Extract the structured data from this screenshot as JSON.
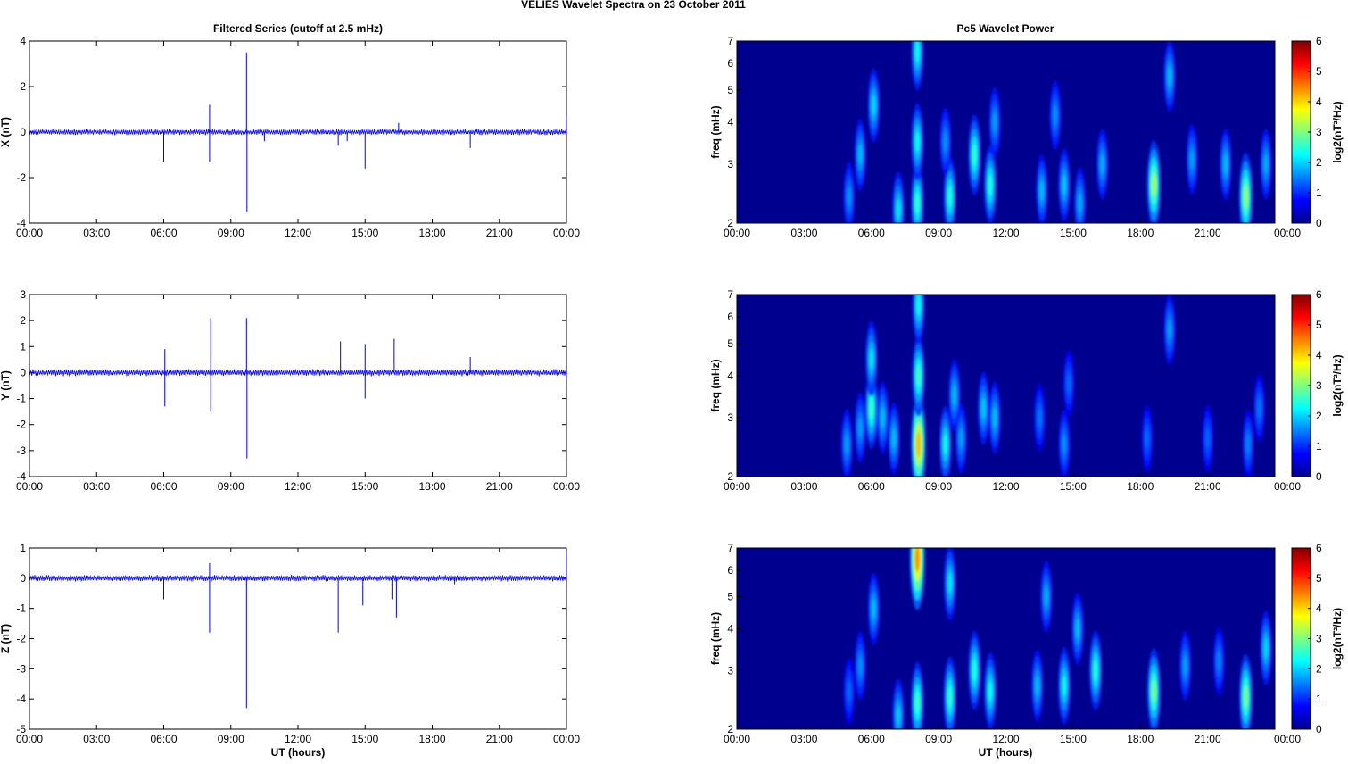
{
  "title": "VELIES Wavelet Spectra on 23 October   2011",
  "left_title": "Filtered Series (cutoff at 2.5 mHz)",
  "right_title": "Pc5 Wavelet Power",
  "x_ticks": [
    "00:00",
    "03:00",
    "06:00",
    "09:00",
    "12:00",
    "15:00",
    "18:00",
    "21:00",
    "00:00"
  ],
  "x_label": "UT (hours)",
  "freq_label": "freq (mHz)",
  "freq_ticks": [
    "2",
    "3",
    "4",
    "5",
    "6",
    "7"
  ],
  "colorbar_ticks": [
    "0",
    "1",
    "2",
    "3",
    "4",
    "5",
    "6"
  ],
  "colorbar_label": "log2(nT²/Hz)",
  "colors": {
    "trace": "#0000ff",
    "spectrum_bg": "#00008f",
    "axis": "#000000"
  },
  "chart_data": [
    {
      "type": "line",
      "title": "Filtered Series (cutoff at 2.5 mHz)",
      "ylabel": "X (nT)",
      "xlim": [
        0,
        24
      ],
      "ylim": [
        -4,
        4
      ],
      "yticks": [
        -4,
        -2,
        0,
        2,
        4
      ],
      "baseline_amplitude": 0.1,
      "spikes": [
        [
          6.0,
          -1.3
        ],
        [
          8.05,
          1.2
        ],
        [
          8.05,
          -1.3
        ],
        [
          9.7,
          3.5
        ],
        [
          9.72,
          -3.5
        ],
        [
          10.5,
          -0.4
        ],
        [
          13.8,
          -0.6
        ],
        [
          14.2,
          -0.4
        ],
        [
          15.0,
          -1.6
        ],
        [
          16.5,
          0.4
        ],
        [
          19.7,
          -0.7
        ],
        [
          24.0,
          0.7
        ]
      ]
    },
    {
      "type": "line",
      "title": "",
      "ylabel": "Y (nT)",
      "xlim": [
        0,
        24
      ],
      "ylim": [
        -4,
        3
      ],
      "yticks": [
        -4,
        -3,
        -2,
        -1,
        0,
        1,
        2,
        3
      ],
      "baseline_amplitude": 0.1,
      "spikes": [
        [
          6.05,
          0.9
        ],
        [
          6.05,
          -1.3
        ],
        [
          8.1,
          2.1
        ],
        [
          8.1,
          -1.5
        ],
        [
          9.7,
          2.1
        ],
        [
          9.72,
          -3.3
        ],
        [
          13.9,
          1.2
        ],
        [
          15.0,
          1.1
        ],
        [
          15.0,
          -1.0
        ],
        [
          16.3,
          1.3
        ],
        [
          19.7,
          0.6
        ],
        [
          24.0,
          -0.3
        ]
      ]
    },
    {
      "type": "line",
      "title": "",
      "ylabel": "Z (nT)",
      "xlim": [
        0,
        24
      ],
      "ylim": [
        -5,
        1
      ],
      "yticks": [
        -5,
        -4,
        -3,
        -2,
        -1,
        0,
        1
      ],
      "baseline_amplitude": 0.08,
      "spikes": [
        [
          6.0,
          -0.7
        ],
        [
          8.05,
          0.5
        ],
        [
          8.05,
          -1.8
        ],
        [
          9.7,
          -4.3
        ],
        [
          13.8,
          -1.8
        ],
        [
          14.9,
          -0.9
        ],
        [
          16.2,
          -0.7
        ],
        [
          16.4,
          -1.3
        ],
        [
          19.0,
          -0.2
        ],
        [
          24.0,
          0.9
        ]
      ]
    },
    {
      "type": "heatmap",
      "title": "Pc5 Wavelet Power",
      "ylabel": "freq (mHz)",
      "xlim": [
        0,
        24
      ],
      "ylim": [
        2,
        7
      ],
      "yscale": "log",
      "zlim": [
        0,
        6
      ],
      "colormap": "jet",
      "blobs": [
        {
          "t": 5.0,
          "f": 2.4,
          "p": 1.2
        },
        {
          "t": 5.5,
          "f": 3.2,
          "p": 1.5
        },
        {
          "t": 6.1,
          "f": 4.5,
          "p": 1.7
        },
        {
          "t": 7.2,
          "f": 2.2,
          "p": 1.8
        },
        {
          "t": 8.05,
          "f": 2.3,
          "p": 2.3
        },
        {
          "t": 8.05,
          "f": 3.5,
          "p": 2.0
        },
        {
          "t": 8.05,
          "f": 6.5,
          "p": 2.0
        },
        {
          "t": 9.5,
          "f": 2.4,
          "p": 2.2
        },
        {
          "t": 9.3,
          "f": 3.5,
          "p": 1.2
        },
        {
          "t": 10.6,
          "f": 3.2,
          "p": 2.3
        },
        {
          "t": 11.3,
          "f": 2.6,
          "p": 2.2
        },
        {
          "t": 11.5,
          "f": 4.0,
          "p": 1.3
        },
        {
          "t": 13.6,
          "f": 2.5,
          "p": 1.5
        },
        {
          "t": 14.6,
          "f": 2.6,
          "p": 1.6
        },
        {
          "t": 14.2,
          "f": 4.2,
          "p": 1.2
        },
        {
          "t": 15.3,
          "f": 2.3,
          "p": 1.4
        },
        {
          "t": 16.3,
          "f": 3.0,
          "p": 1.4
        },
        {
          "t": 18.6,
          "f": 2.6,
          "p": 3.1
        },
        {
          "t": 19.3,
          "f": 5.5,
          "p": 1.5
        },
        {
          "t": 20.3,
          "f": 3.1,
          "p": 1.3
        },
        {
          "t": 21.8,
          "f": 3.0,
          "p": 1.5
        },
        {
          "t": 22.7,
          "f": 2.4,
          "p": 3.0
        },
        {
          "t": 23.6,
          "f": 3.0,
          "p": 1.4
        }
      ]
    },
    {
      "type": "heatmap",
      "title": "",
      "ylabel": "freq (mHz)",
      "xlim": [
        0,
        24
      ],
      "ylim": [
        2,
        7
      ],
      "yscale": "log",
      "zlim": [
        0,
        6
      ],
      "colormap": "jet",
      "blobs": [
        {
          "t": 4.9,
          "f": 2.5,
          "p": 1.3
        },
        {
          "t": 5.5,
          "f": 2.8,
          "p": 1.3
        },
        {
          "t": 6.0,
          "f": 3.2,
          "p": 2.4
        },
        {
          "t": 6.0,
          "f": 4.5,
          "p": 1.8
        },
        {
          "t": 6.5,
          "f": 3.0,
          "p": 1.5
        },
        {
          "t": 7.0,
          "f": 2.6,
          "p": 1.5
        },
        {
          "t": 8.1,
          "f": 2.5,
          "p": 4.2
        },
        {
          "t": 8.1,
          "f": 4.0,
          "p": 2.4
        },
        {
          "t": 8.1,
          "f": 6.5,
          "p": 2.0
        },
        {
          "t": 9.3,
          "f": 2.5,
          "p": 2.0
        },
        {
          "t": 9.7,
          "f": 3.5,
          "p": 1.5
        },
        {
          "t": 10.0,
          "f": 2.6,
          "p": 1.3
        },
        {
          "t": 11.0,
          "f": 3.2,
          "p": 1.6
        },
        {
          "t": 11.5,
          "f": 3.0,
          "p": 1.5
        },
        {
          "t": 13.5,
          "f": 3.0,
          "p": 1.0
        },
        {
          "t": 14.6,
          "f": 2.5,
          "p": 1.2
        },
        {
          "t": 14.8,
          "f": 3.8,
          "p": 0.9
        },
        {
          "t": 18.3,
          "f": 2.6,
          "p": 0.9
        },
        {
          "t": 19.3,
          "f": 5.5,
          "p": 1.3
        },
        {
          "t": 21.0,
          "f": 2.6,
          "p": 0.9
        },
        {
          "t": 22.8,
          "f": 2.5,
          "p": 1.1
        },
        {
          "t": 23.3,
          "f": 3.2,
          "p": 1.0
        }
      ]
    },
    {
      "type": "heatmap",
      "title": "",
      "ylabel": "freq (mHz)",
      "xlim": [
        0,
        24
      ],
      "ylim": [
        2,
        7
      ],
      "yscale": "log",
      "zlim": [
        0,
        6
      ],
      "colormap": "jet",
      "blobs": [
        {
          "t": 5.0,
          "f": 2.6,
          "p": 0.9
        },
        {
          "t": 5.5,
          "f": 3.1,
          "p": 1.2
        },
        {
          "t": 6.1,
          "f": 4.6,
          "p": 1.5
        },
        {
          "t": 7.2,
          "f": 2.2,
          "p": 1.6
        },
        {
          "t": 8.05,
          "f": 2.4,
          "p": 2.4
        },
        {
          "t": 8.05,
          "f": 6.5,
          "p": 4.5
        },
        {
          "t": 9.5,
          "f": 2.5,
          "p": 2.3
        },
        {
          "t": 9.5,
          "f": 5.5,
          "p": 1.8
        },
        {
          "t": 10.6,
          "f": 3.0,
          "p": 2.2
        },
        {
          "t": 11.3,
          "f": 2.6,
          "p": 2.0
        },
        {
          "t": 13.4,
          "f": 2.7,
          "p": 1.5
        },
        {
          "t": 13.8,
          "f": 5.0,
          "p": 1.4
        },
        {
          "t": 14.6,
          "f": 2.7,
          "p": 2.0
        },
        {
          "t": 15.2,
          "f": 4.0,
          "p": 1.5
        },
        {
          "t": 16.0,
          "f": 3.0,
          "p": 2.2
        },
        {
          "t": 18.6,
          "f": 2.6,
          "p": 2.8
        },
        {
          "t": 20.0,
          "f": 3.1,
          "p": 1.3
        },
        {
          "t": 21.5,
          "f": 3.2,
          "p": 1.1
        },
        {
          "t": 22.7,
          "f": 2.5,
          "p": 2.8
        },
        {
          "t": 23.6,
          "f": 3.5,
          "p": 1.7
        }
      ]
    }
  ]
}
